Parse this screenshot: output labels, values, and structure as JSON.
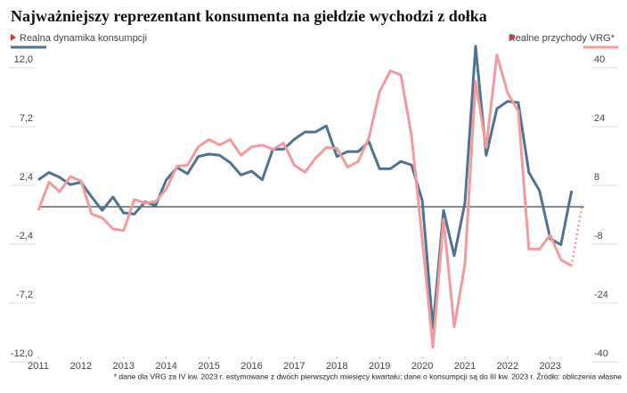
{
  "chart_data": {
    "type": "line",
    "title": "Najważniejszy reprezentant konsumenta na giełdzie wychodzi z dołka",
    "footnote": "* dane dla VRG za IV kw. 2023 r. estymowane z dwóch pierwszych miesięcy kwartału; dane o konsumpcji są do III kw. 2023 r. Źródło: obliczenia własne",
    "x": [
      2011,
      2011.25,
      2011.5,
      2011.75,
      2012,
      2012.25,
      2012.5,
      2012.75,
      2013,
      2013.25,
      2013.5,
      2013.75,
      2014,
      2014.25,
      2014.5,
      2014.75,
      2015,
      2015.25,
      2015.5,
      2015.75,
      2016,
      2016.25,
      2016.5,
      2016.75,
      2017,
      2017.25,
      2017.5,
      2017.75,
      2018,
      2018.25,
      2018.5,
      2018.75,
      2019,
      2019.25,
      2019.5,
      2019.75,
      2020,
      2020.25,
      2020.5,
      2020.75,
      2021,
      2021.25,
      2021.5,
      2021.75,
      2022,
      2022.25,
      2022.5,
      2022.75,
      2023,
      2023.25,
      2023.5,
      2023.75
    ],
    "xlim": [
      2011,
      2024
    ],
    "xticks": [
      2011,
      2012,
      2013,
      2014,
      2015,
      2016,
      2017,
      2018,
      2019,
      2020,
      2021,
      2022,
      2023
    ],
    "ylim": [
      -12,
      12
    ],
    "yticks": [
      {
        "value": -12,
        "label": "-12,0"
      },
      {
        "value": -7.2,
        "label": "-7,2"
      },
      {
        "value": -2.4,
        "label": "-2,4"
      },
      {
        "value": 2.4,
        "label": "2,4"
      },
      {
        "value": 7.2,
        "label": "7,2"
      },
      {
        "value": 12,
        "label": "12,0"
      }
    ],
    "y2lim": [
      -40,
      40
    ],
    "y2ticks": [
      -40,
      -24,
      -8,
      8,
      24,
      40
    ],
    "series": [
      {
        "name": "Realna dynamika konsumpcji",
        "color": "#4f7390",
        "axis": "y",
        "values": [
          2.2,
          2.8,
          2.4,
          1.8,
          2.0,
          0.8,
          -0.3,
          0.8,
          -0.5,
          -0.6,
          0.4,
          0.1,
          2.2,
          3.2,
          2.7,
          4.1,
          4.3,
          4.2,
          3.6,
          2.6,
          2.9,
          2.2,
          4.7,
          4.7,
          5.5,
          6.1,
          6.1,
          6.6,
          4.1,
          4.5,
          4.5,
          5.3,
          3.1,
          3.1,
          3.7,
          3.4,
          0.5,
          -9.9,
          -0.3,
          -4.0,
          0.3,
          13.1,
          4.2,
          8.0,
          8.6,
          8.5,
          2.8,
          1.3,
          -2.6,
          -3.1,
          1.3,
          null
        ]
      },
      {
        "name": "Realne przychody VRG*",
        "color": "#f29a9d",
        "axis": "y2",
        "dotted_last": 1,
        "values": [
          -1,
          6.7,
          4.1,
          8.2,
          7,
          -2,
          -3,
          -6,
          -6.5,
          2,
          1,
          1.4,
          4.8,
          11,
          11.3,
          16.3,
          18.3,
          16.8,
          18.3,
          14,
          16.3,
          16.8,
          15.6,
          17.3,
          11.3,
          9.4,
          13.2,
          16.1,
          15.9,
          10.8,
          12.3,
          18.8,
          31.3,
          37,
          35.8,
          19.2,
          -8.9,
          -38.2,
          -3.4,
          -32.7,
          -15.6,
          34.1,
          16.1,
          41.3,
          31,
          26,
          -11.5,
          -11.5,
          -7.7,
          -14.4,
          -16.1,
          0.7
        ]
      }
    ]
  }
}
